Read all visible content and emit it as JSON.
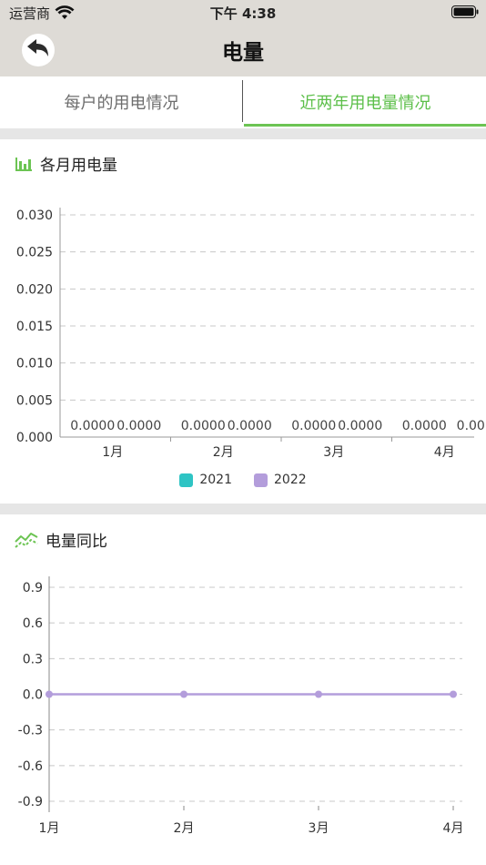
{
  "status_bar": {
    "carrier": "运营商",
    "time": "下午 4:38"
  },
  "header": {
    "title": "电量",
    "back_icon": "back-arrow-icon"
  },
  "tabs": [
    {
      "label": "每户的用电情况",
      "active": false
    },
    {
      "label": "近两年用电量情况",
      "active": true
    }
  ],
  "colors": {
    "accent": "#5cbf49",
    "series_2021": "#2ec4c4",
    "series_2022": "#b39ddb"
  },
  "monthly_section": {
    "title": "各月用电量",
    "icon": "bar-chart-icon"
  },
  "yoy_section": {
    "title": "电量同比",
    "icon": "line-trend-icon"
  },
  "chart_data": [
    {
      "type": "bar",
      "categories": [
        "1月",
        "2月",
        "3月",
        "4月"
      ],
      "series": [
        {
          "name": "2021",
          "values": [
            0,
            0,
            0,
            0
          ]
        },
        {
          "name": "2022",
          "values": [
            0,
            0,
            0,
            0
          ]
        }
      ],
      "data_labels": [
        "0.0000",
        "0.0000",
        "0.0000",
        "0.0000",
        "0.0000",
        "0.0000",
        "0.0000",
        "0.00"
      ],
      "yticks": [
        "0.000",
        "0.005",
        "0.010",
        "0.015",
        "0.020",
        "0.025",
        "0.030"
      ],
      "ylim": [
        0,
        0.03
      ],
      "grid": true,
      "legend": "bottom-center"
    },
    {
      "type": "line",
      "x": [
        "1月",
        "2月",
        "3月",
        "4月"
      ],
      "series": [
        {
          "values": [
            0,
            0,
            0,
            0
          ]
        }
      ],
      "yticks": [
        "0.9",
        "0.6",
        "0.3",
        "0.0",
        "-0.3",
        "-0.6",
        "-0.9"
      ],
      "ylim": [
        -0.9,
        0.9
      ],
      "grid": true
    }
  ]
}
